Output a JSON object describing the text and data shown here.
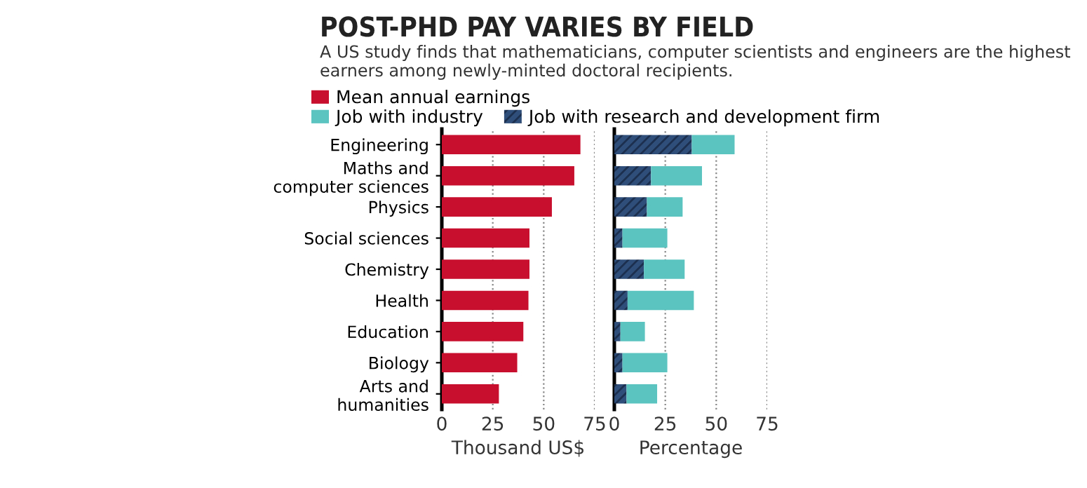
{
  "chart_data": [
    {
      "type": "bar",
      "orientation": "horizontal",
      "title": "POST-PHD PAY VARIES BY FIELD",
      "subtitle": "A US study finds that mathematicians, computer scientists and engineers are the highest earners among newly-minted doctoral recipients.",
      "xlabel": "Thousand US$",
      "categories": [
        "Engineering",
        "Maths and\ncomputer sciences",
        "Physics",
        "Social sciences",
        "Chemistry",
        "Health",
        "Education",
        "Biology",
        "Arts and\nhumanities"
      ],
      "series": [
        {
          "name": "Mean annual earnings",
          "color": "#c8102e",
          "values": [
            68,
            65,
            54,
            43,
            43,
            42.5,
            40,
            37,
            28
          ]
        }
      ],
      "xlim": [
        0,
        75
      ],
      "xticks": [
        0,
        25,
        50,
        75
      ],
      "grid": "x",
      "legend": "top"
    },
    {
      "type": "bar",
      "orientation": "horizontal",
      "stacked": true,
      "xlabel": "Percentage",
      "tick_labels": "x",
      "categories": [
        null,
        null,
        null,
        null,
        null,
        null,
        null,
        null,
        null
      ],
      "series": [
        {
          "name": "Job with research and development firm",
          "color": "#2f4f7a",
          "values": [
            38,
            18,
            16,
            4,
            14.5,
            6.5,
            3,
            4,
            6
          ]
        },
        {
          "name": "Job with industry",
          "color": "#5bc4c0",
          "values": [
            21,
            25,
            17.5,
            22,
            20,
            32.5,
            12,
            22,
            15
          ]
        }
      ],
      "xlim": [
        0,
        75
      ],
      "xticks": [
        0,
        25,
        50,
        75
      ],
      "grid": "x",
      "legend": "top"
    }
  ]
}
